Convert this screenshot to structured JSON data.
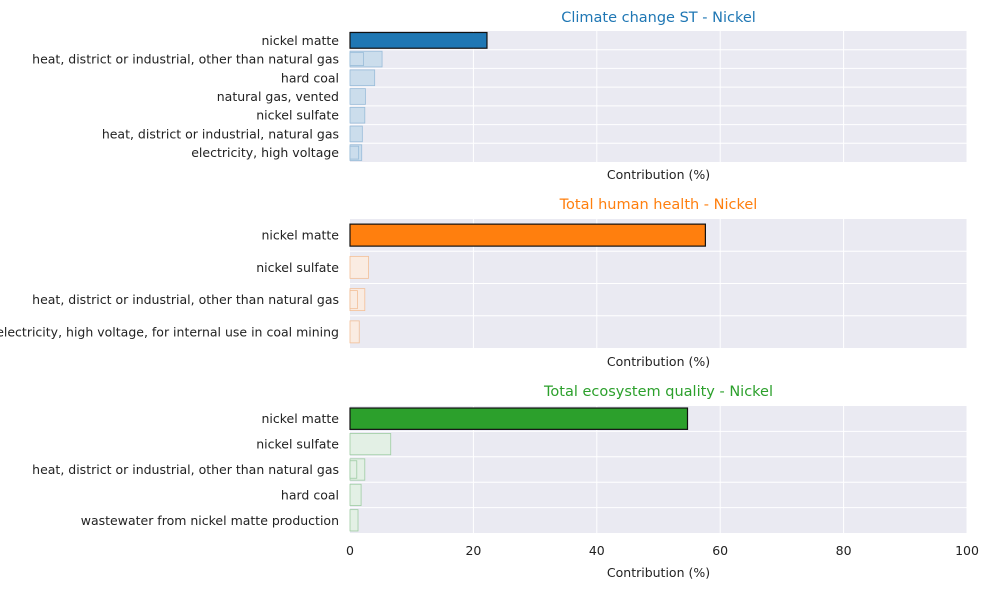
{
  "chart_data": [
    {
      "type": "bar",
      "orientation": "horizontal",
      "title": "Climate change ST - Nickel",
      "title_color": "#1f77b4",
      "xlabel": "Contribution (%)",
      "ylabel": "",
      "xlim": [
        0,
        100
      ],
      "xticks": [
        0,
        20,
        40,
        60,
        80,
        100
      ],
      "show_xtick_labels": false,
      "grid": true,
      "color": "#1f77b4",
      "categories": [
        "nickel matte",
        "heat, district or industrial, other than natural gas",
        "hard coal",
        "natural gas, vented",
        "nickel sulfate",
        "heat, district or industrial, natural gas",
        "electricity, high voltage"
      ],
      "series": [
        {
          "values": [
            22.2,
            5.2,
            4.0,
            2.5,
            2.4,
            2.0,
            1.9
          ]
        },
        {
          "values": [
            0,
            2.2,
            0,
            0,
            0,
            0,
            1.4
          ]
        }
      ]
    },
    {
      "type": "bar",
      "orientation": "horizontal",
      "title": "Total human health - Nickel",
      "title_color": "#ff7f0e",
      "xlabel": "Contribution (%)",
      "ylabel": "",
      "xlim": [
        0,
        100
      ],
      "xticks": [
        0,
        20,
        40,
        60,
        80,
        100
      ],
      "show_xtick_labels": false,
      "grid": true,
      "color": "#ff7f0e",
      "categories": [
        "nickel matte",
        "nickel sulfate",
        "heat, district or industrial, other than natural gas",
        "electricity, high voltage, for internal use in coal mining"
      ],
      "series": [
        {
          "values": [
            57.6,
            3.0,
            2.4,
            1.5
          ]
        },
        {
          "values": [
            0,
            0,
            1.2,
            0
          ]
        }
      ]
    },
    {
      "type": "bar",
      "orientation": "horizontal",
      "title": "Total ecosystem quality - Nickel",
      "title_color": "#2ca02c",
      "xlabel": "Contribution (%)",
      "ylabel": "",
      "xlim": [
        0,
        100
      ],
      "xticks": [
        0,
        20,
        40,
        60,
        80,
        100
      ],
      "show_xtick_labels": true,
      "grid": true,
      "color": "#2ca02c",
      "categories": [
        "nickel matte",
        "nickel sulfate",
        "heat, district or industrial, other than natural gas",
        "hard coal",
        "wastewater from nickel matte production"
      ],
      "series": [
        {
          "values": [
            54.7,
            6.6,
            2.4,
            1.8,
            1.3
          ]
        },
        {
          "values": [
            0,
            0,
            1.1,
            0,
            0
          ]
        }
      ]
    }
  ]
}
